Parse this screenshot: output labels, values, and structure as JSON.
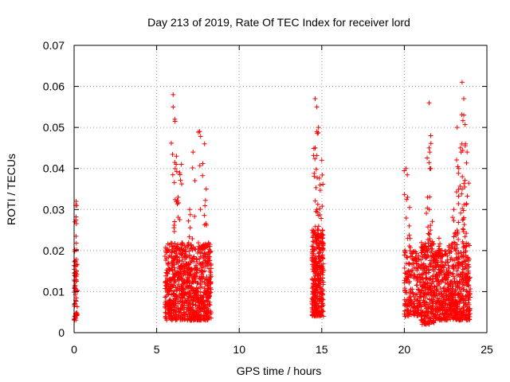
{
  "chart_data": {
    "type": "scatter",
    "title": "Day 213 of 2019, Rate Of TEC Index for receiver lord",
    "xlabel": "GPS time / hours",
    "ylabel": "ROTI / TECUs",
    "xlim": [
      0,
      25
    ],
    "ylim": [
      0,
      0.07
    ],
    "x_ticks": [
      "0",
      "5",
      "10",
      "15",
      "20",
      "25"
    ],
    "y_ticks": [
      "0",
      "0.01",
      "0.02",
      "0.03",
      "0.04",
      "0.05",
      "0.06",
      "0.07"
    ],
    "grid": true,
    "marker": "+",
    "colors": {
      "points": "#ff0000"
    },
    "series": [
      {
        "values_description_none": "",
        "clusters": [
          {
            "x_range": [
              0.0,
              0.2
            ],
            "y_range": [
              0.003,
              0.02
            ],
            "count": 60,
            "peaks": [
              [
                0.05,
                0.027
              ],
              [
                0.1,
                0.031
              ],
              [
                0.12,
                0.032
              ]
            ]
          },
          {
            "x_range": [
              5.5,
              8.3
            ],
            "y_range": [
              0.003,
              0.022
            ],
            "count": 900,
            "peaks": [
              [
                6.0,
                0.058
              ],
              [
                6.0,
                0.055
              ],
              [
                6.1,
                0.052
              ],
              [
                6.2,
                0.043
              ],
              [
                6.5,
                0.041
              ],
              [
                7.2,
                0.044
              ],
              [
                7.6,
                0.049
              ],
              [
                7.9,
                0.046
              ],
              [
                8.0,
                0.035
              ],
              [
                6.3,
                0.033
              ],
              [
                7.0,
                0.03
              ]
            ]
          },
          {
            "x_range": [
              14.4,
              15.1
            ],
            "y_range": [
              0.004,
              0.025
            ],
            "count": 350,
            "peaks": [
              [
                14.6,
                0.057
              ],
              [
                14.7,
                0.055
              ],
              [
                14.8,
                0.05
              ],
              [
                14.6,
                0.045
              ],
              [
                15.0,
                0.042
              ],
              [
                14.9,
                0.036
              ],
              [
                14.7,
                0.03
              ]
            ]
          },
          {
            "x_range": [
              20.0,
              21.0
            ],
            "y_range": [
              0.004,
              0.02
            ],
            "count": 200,
            "peaks": [
              [
                20.1,
                0.04
              ],
              [
                20.2,
                0.033
              ],
              [
                20.3,
                0.026
              ]
            ]
          },
          {
            "x_range": [
              21.0,
              21.8
            ],
            "y_range": [
              0.002,
              0.022
            ],
            "count": 260,
            "peaks": [
              [
                21.5,
                0.056
              ],
              [
                21.6,
                0.048
              ],
              [
                21.5,
                0.045
              ],
              [
                21.6,
                0.04
              ],
              [
                21.4,
                0.033
              ]
            ]
          },
          {
            "x_range": [
              21.8,
              22.6
            ],
            "y_range": [
              0.003,
              0.02
            ],
            "count": 220,
            "peaks": [
              [
                22.1,
                0.023
              ],
              [
                22.2,
                0.02
              ]
            ]
          },
          {
            "x_range": [
              22.6,
              24.0
            ],
            "y_range": [
              0.003,
              0.022
            ],
            "count": 420,
            "peaks": [
              [
                23.5,
                0.061
              ],
              [
                23.6,
                0.057
              ],
              [
                23.6,
                0.053
              ],
              [
                23.2,
                0.05
              ],
              [
                23.4,
                0.045
              ],
              [
                23.7,
                0.046
              ],
              [
                23.8,
                0.044
              ],
              [
                23.3,
                0.04
              ],
              [
                23.5,
                0.035
              ],
              [
                23.0,
                0.03
              ],
              [
                23.6,
                0.028
              ],
              [
                23.2,
                0.025
              ]
            ]
          }
        ]
      }
    ]
  }
}
